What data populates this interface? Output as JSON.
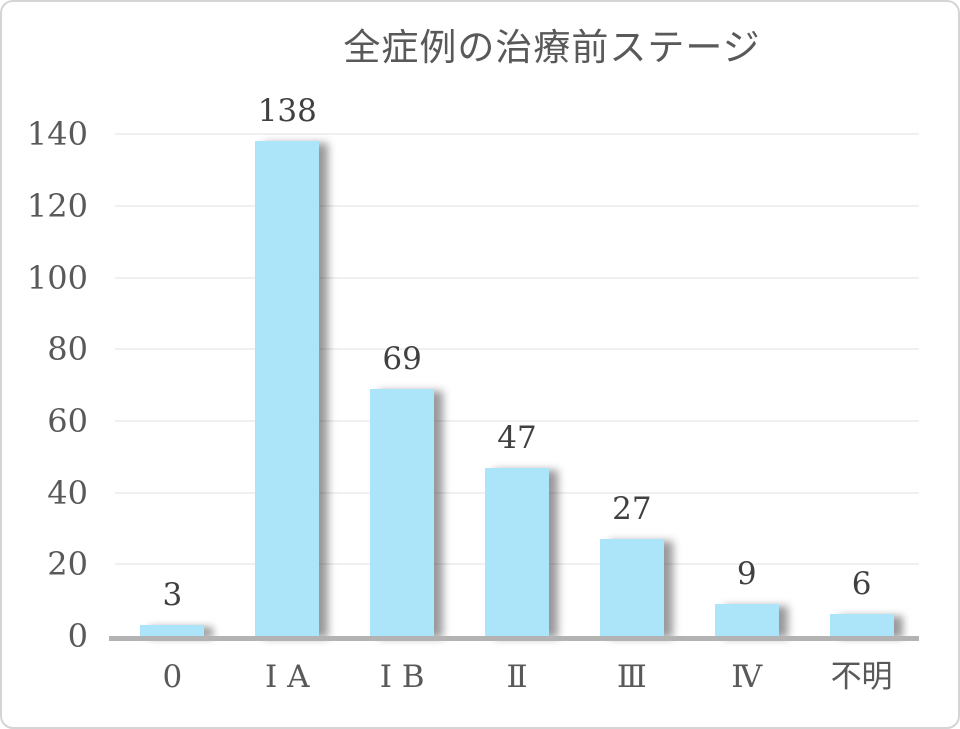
{
  "chart_data": {
    "type": "bar",
    "title": "全症例の治療前ステージ",
    "categories": [
      "0",
      "Ⅰ A",
      "Ⅰ B",
      "Ⅱ",
      "Ⅲ",
      "Ⅳ",
      "不明"
    ],
    "values": [
      3,
      138,
      69,
      47,
      27,
      9,
      6
    ],
    "data_labels": [
      "3",
      "138",
      "69",
      "47",
      "27",
      "9",
      "6"
    ],
    "y_ticks": [
      0,
      20,
      40,
      60,
      80,
      100,
      120,
      140
    ],
    "ylim": [
      0,
      140
    ],
    "xlabel": "",
    "ylabel": "",
    "grid": true,
    "legend_position": "none",
    "colors": {
      "bar_fill": "#ace4f9",
      "bar_shadow": "rgba(0,0,0,0.40)",
      "axis_line": "#b3b3b3",
      "gridline": "#f0f0f0",
      "tick_label": "#595959",
      "data_label": "#404040",
      "title": "#595959",
      "frame_border": "#d5d5d5",
      "background": "#ffffff"
    }
  }
}
